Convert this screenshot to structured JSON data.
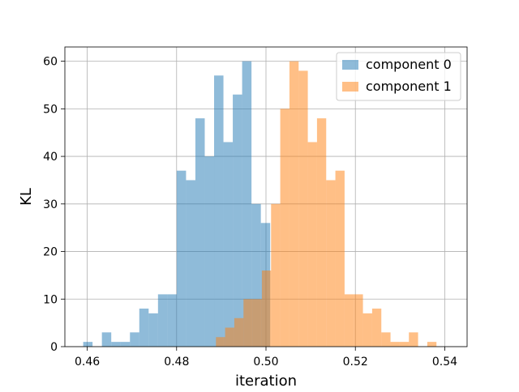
{
  "chart_data": {
    "type": "histogram",
    "xlabel": "iteration",
    "ylabel": "KL",
    "xlim": [
      0.455,
      0.545
    ],
    "ylim": [
      0,
      63
    ],
    "grid": true,
    "legend_position": "top-right",
    "x_ticks": [
      0.46,
      0.48,
      0.5,
      0.52,
      0.54
    ],
    "x_tick_labels": [
      "0.46",
      "0.48",
      "0.50",
      "0.52",
      "0.54"
    ],
    "y_ticks": [
      0,
      10,
      20,
      30,
      40,
      50,
      60
    ],
    "y_tick_labels": [
      "0",
      "10",
      "20",
      "30",
      "40",
      "50",
      "60"
    ],
    "series": [
      {
        "name": "component 0",
        "color": "#1f77b4",
        "opacity": 0.5,
        "bin_start": 0.4591,
        "bin_width": 0.002092,
        "counts": [
          1,
          0,
          3,
          1,
          1,
          3,
          8,
          7,
          11,
          11,
          37,
          35,
          48,
          40,
          57,
          43,
          53,
          60,
          30,
          26
        ]
      },
      {
        "name": "component 1",
        "color": "#ff7f0e",
        "opacity": 0.5,
        "bin_start": 0.4888,
        "bin_width": 0.002056,
        "counts": [
          2,
          4,
          6,
          10,
          10,
          16,
          30,
          50,
          60,
          58,
          43,
          48,
          35,
          37,
          11,
          11,
          7,
          8,
          3,
          1,
          1,
          3,
          0,
          1
        ]
      }
    ]
  }
}
